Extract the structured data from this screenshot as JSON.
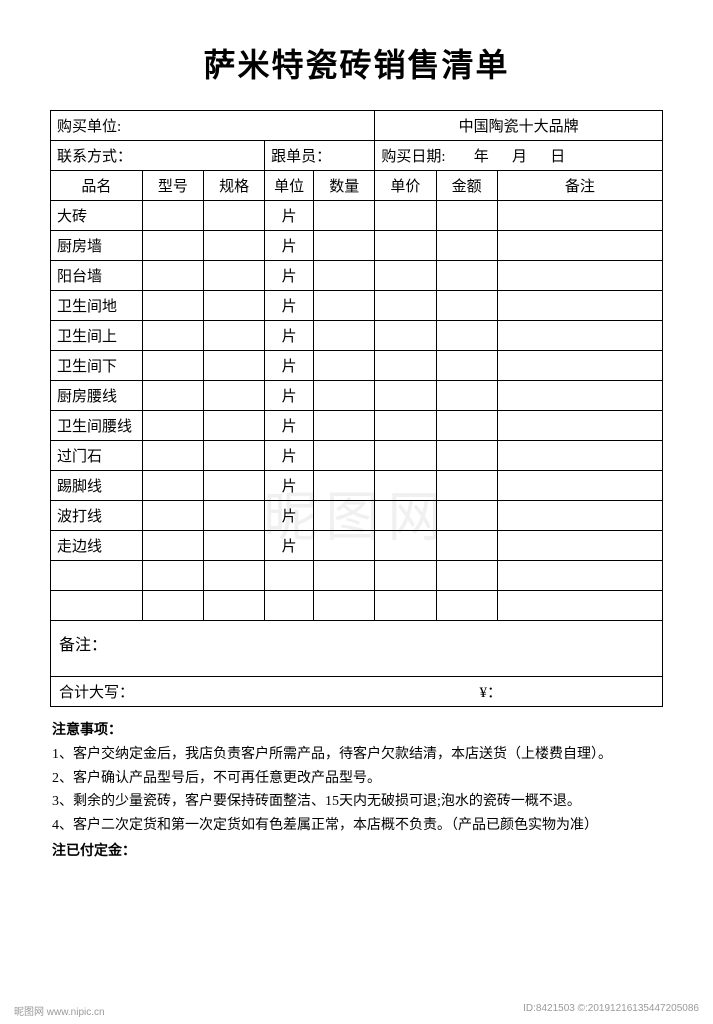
{
  "title": "萨米特瓷砖销售清单",
  "header": {
    "buyer_label": "购买单位:",
    "brand_text": "中国陶瓷十大品牌",
    "contact_label": "联系方式：",
    "follower_label": "跟单员：",
    "date_label": "购买日期:",
    "year": "年",
    "month": "月",
    "day": "日"
  },
  "columns": [
    "品名",
    "型号",
    "规格",
    "单位",
    "数量",
    "单价",
    "金额",
    "备注"
  ],
  "col_widths_pct": [
    15,
    10,
    10,
    8,
    10,
    10,
    10,
    27
  ],
  "rows": [
    {
      "name": "大砖",
      "unit": "片"
    },
    {
      "name": "厨房墙",
      "unit": "片"
    },
    {
      "name": "阳台墙",
      "unit": "片"
    },
    {
      "name": "卫生间地",
      "unit": "片"
    },
    {
      "name": "卫生间上",
      "unit": "片"
    },
    {
      "name": "卫生间下",
      "unit": "片"
    },
    {
      "name": "厨房腰线",
      "unit": "片"
    },
    {
      "name": "卫生间腰线",
      "unit": "片"
    },
    {
      "name": "过门石",
      "unit": "片"
    },
    {
      "name": "踢脚线",
      "unit": "片"
    },
    {
      "name": "波打线",
      "unit": "片"
    },
    {
      "name": "走边线",
      "unit": "片"
    },
    {
      "name": "",
      "unit": ""
    },
    {
      "name": "",
      "unit": ""
    }
  ],
  "remark_label": "备注：",
  "total_label": "合计大写：",
  "yen_symbol": "¥：",
  "notes_title": "注意事项：",
  "notes": [
    "1、客户交纳定金后，我店负责客户所需产品，待客户欠款结清，本店送货（上楼费自理）。",
    "2、客户确认产品型号后，不可再任意更改产品型号。",
    "3、剩余的少量瓷砖，客户要保持砖面整洁、15天内无破损可退;泡水的瓷砖一概不退。",
    "4、客户二次定货和第一次定货如有色差属正常，本店概不负责。（产品已颜色实物为准）"
  ],
  "paid_label": "注已付定金：",
  "watermark": "昵图网",
  "footer_left": "昵图网 www.nipic.cn",
  "footer_right": "ID:8421503   ©:20191216135447205086",
  "colors": {
    "text": "#000000",
    "bg": "#ffffff",
    "border": "#000000",
    "watermark": "rgba(0,0,0,0.06)",
    "footer": "#9a9a9a"
  }
}
